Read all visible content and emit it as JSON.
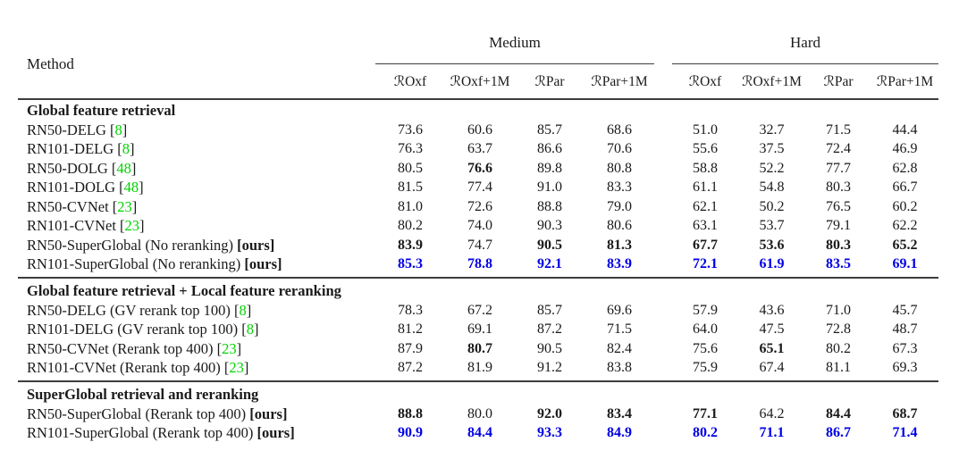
{
  "labels": {
    "method": "Method",
    "ours": "[ours]",
    "cite_open": "[",
    "cite_close": "]"
  },
  "colors": {
    "citation": "#00d400",
    "highlight": "#0000e6",
    "text": "#1a1a1a",
    "rule": "#3d3d3d"
  },
  "header": {
    "groups": [
      {
        "label": "Medium",
        "columns": [
          "ℛOxf",
          "ℛOxf+1M",
          "ℛPar",
          "ℛPar+1M"
        ]
      },
      {
        "label": "Hard",
        "columns": [
          "ℛOxf",
          "ℛOxf+1M",
          "ℛPar",
          "ℛPar+1M"
        ]
      }
    ]
  },
  "sections": [
    {
      "title": "Global feature retrieval",
      "rows": [
        {
          "method": "RN50-DELG",
          "cite": "8",
          "values": [
            "73.6",
            "60.6",
            "85.7",
            "68.6",
            "51.0",
            "32.7",
            "71.5",
            "44.4"
          ],
          "bold": []
        },
        {
          "method": "RN101-DELG",
          "cite": "8",
          "values": [
            "76.3",
            "63.7",
            "86.6",
            "70.6",
            "55.6",
            "37.5",
            "72.4",
            "46.9"
          ],
          "bold": []
        },
        {
          "method": "RN50-DOLG",
          "cite": "48",
          "values": [
            "80.5",
            "76.6",
            "89.8",
            "80.8",
            "58.8",
            "52.2",
            "77.7",
            "62.8"
          ],
          "bold": [
            1
          ]
        },
        {
          "method": "RN101-DOLG",
          "cite": "48",
          "values": [
            "81.5",
            "77.4",
            "91.0",
            "83.3",
            "61.1",
            "54.8",
            "80.3",
            "66.7"
          ],
          "bold": []
        },
        {
          "method": "RN50-CVNet",
          "cite": "23",
          "values": [
            "81.0",
            "72.6",
            "88.8",
            "79.0",
            "62.1",
            "50.2",
            "76.5",
            "60.2"
          ],
          "bold": []
        },
        {
          "method": "RN101-CVNet",
          "cite": "23",
          "values": [
            "80.2",
            "74.0",
            "90.3",
            "80.6",
            "63.1",
            "53.7",
            "79.1",
            "62.2"
          ],
          "bold": []
        },
        {
          "method": "RN50-SuperGlobal (No reranking)",
          "ours": true,
          "values": [
            "83.9",
            "74.7",
            "90.5",
            "81.3",
            "67.7",
            "53.6",
            "80.3",
            "65.2"
          ],
          "bold": [
            0,
            2,
            3,
            4,
            5,
            6,
            7
          ]
        },
        {
          "method": "RN101-SuperGlobal (No reranking)",
          "ours": true,
          "highlight": true,
          "values": [
            "85.3",
            "78.8",
            "92.1",
            "83.9",
            "72.1",
            "61.9",
            "83.5",
            "69.1"
          ],
          "bold": [
            0,
            1,
            2,
            3,
            4,
            5,
            6,
            7
          ]
        }
      ]
    },
    {
      "title": "Global feature retrieval + Local feature reranking",
      "rows": [
        {
          "method": "RN50-DELG (GV rerank top 100)",
          "cite": "8",
          "values": [
            "78.3",
            "67.2",
            "85.7",
            "69.6",
            "57.9",
            "43.6",
            "71.0",
            "45.7"
          ],
          "bold": []
        },
        {
          "method": "RN101-DELG (GV rerank top 100)",
          "cite": "8",
          "values": [
            "81.2",
            "69.1",
            "87.2",
            "71.5",
            "64.0",
            "47.5",
            "72.8",
            "48.7"
          ],
          "bold": []
        },
        {
          "method": "RN50-CVNet (Rerank top 400)",
          "cite": "23",
          "values": [
            "87.9",
            "80.7",
            "90.5",
            "82.4",
            "75.6",
            "65.1",
            "80.2",
            "67.3"
          ],
          "bold": [
            1,
            5
          ]
        },
        {
          "method": "RN101-CVNet (Rerank top 400)",
          "cite": "23",
          "values": [
            "87.2",
            "81.9",
            "91.2",
            "83.8",
            "75.9",
            "67.4",
            "81.1",
            "69.3"
          ],
          "bold": []
        }
      ]
    },
    {
      "title": "SuperGlobal retrieval and reranking",
      "rows": [
        {
          "method": "RN50-SuperGlobal (Rerank top 400)",
          "ours": true,
          "values": [
            "88.8",
            "80.0",
            "92.0",
            "83.4",
            "77.1",
            "64.2",
            "84.4",
            "68.7"
          ],
          "bold": [
            0,
            2,
            3,
            4,
            6,
            7
          ]
        },
        {
          "method": "RN101-SuperGlobal (Rerank top 400)",
          "ours": true,
          "highlight": true,
          "values": [
            "90.9",
            "84.4",
            "93.3",
            "84.9",
            "80.2",
            "71.1",
            "86.7",
            "71.4"
          ],
          "bold": [
            0,
            1,
            2,
            3,
            4,
            5,
            6,
            7
          ]
        }
      ]
    }
  ]
}
